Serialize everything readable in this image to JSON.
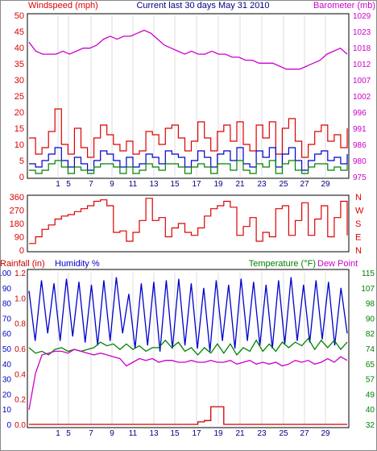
{
  "chart_data": [
    {
      "type": "line",
      "title": "Current last 30 days May 31 2010",
      "ylabel_left": "Windspeed (mph)",
      "ylabel_right": "Barometer (mb)",
      "x_ticks": [
        "1",
        "5",
        "7",
        "9",
        "11",
        "13",
        "15",
        "17",
        "19",
        "21",
        "23",
        "25",
        "27",
        "29"
      ],
      "y_left_ticks": [
        "0",
        "5",
        "10",
        "15",
        "20",
        "25",
        "30",
        "35",
        "40",
        "45",
        "50"
      ],
      "y_left_lim": [
        0,
        50
      ],
      "y_right_ticks": [
        "975",
        "980",
        "986",
        "991",
        "996",
        "1002",
        "1007",
        "1012",
        "1018",
        "1023",
        "1029"
      ],
      "y_right_lim": [
        975,
        1029
      ],
      "series": [
        {
          "name": "Windspeed (mph)",
          "kind": "gust",
          "color": "#dd0000",
          "values": [
            12,
            7,
            9,
            14,
            21,
            10,
            7,
            15,
            9,
            6,
            12,
            16,
            13,
            10,
            8,
            11,
            7,
            8,
            14,
            13,
            10,
            15,
            16,
            12,
            8,
            11,
            17,
            12,
            8,
            14,
            16,
            11,
            17,
            10,
            8,
            16,
            12,
            17,
            7,
            15,
            18,
            11,
            6,
            10,
            14,
            16,
            11,
            13,
            9,
            15
          ]
        },
        {
          "name": "average",
          "kind": "avg",
          "color": "#0000cc",
          "values": [
            4,
            3,
            5,
            7,
            9,
            5,
            3,
            6,
            4,
            2,
            5,
            8,
            7,
            5,
            3,
            6,
            3,
            4,
            7,
            6,
            4,
            8,
            7,
            6,
            3,
            5,
            8,
            6,
            3,
            7,
            8,
            5,
            9,
            4,
            3,
            8,
            6,
            9,
            3,
            7,
            9,
            5,
            2,
            5,
            7,
            8,
            5,
            6,
            4,
            7
          ]
        },
        {
          "name": "low",
          "kind": "low",
          "color": "#008000",
          "values": [
            2,
            1,
            2,
            4,
            5,
            3,
            1,
            3,
            2,
            1,
            3,
            4,
            4,
            3,
            1,
            3,
            1,
            2,
            4,
            3,
            2,
            4,
            4,
            3,
            1,
            3,
            4,
            3,
            1,
            4,
            4,
            2,
            5,
            2,
            1,
            4,
            3,
            5,
            1,
            4,
            5,
            2,
            1,
            3,
            4,
            4,
            2,
            3,
            2,
            4
          ]
        },
        {
          "name": "Barometer (mb)",
          "kind": "baro",
          "color": "#cc00cc",
          "values": [
            1020,
            1017,
            1016,
            1016,
            1016,
            1017,
            1016,
            1017,
            1018,
            1018,
            1019,
            1021,
            1022,
            1021,
            1022,
            1022,
            1023,
            1024,
            1023,
            1021,
            1019,
            1018,
            1017,
            1016,
            1017,
            1016,
            1016,
            1017,
            1016,
            1016,
            1015,
            1015,
            1014,
            1014,
            1013,
            1013,
            1013,
            1012,
            1011,
            1011,
            1011,
            1012,
            1013,
            1014,
            1016,
            1017,
            1018,
            1016
          ]
        }
      ]
    },
    {
      "type": "line",
      "ylabel": "Wind direction",
      "y_ticks": [
        "0",
        "90",
        "180",
        "270",
        "360"
      ],
      "y_lim": [
        0,
        360
      ],
      "y_right_labels": [
        "N",
        "W",
        "S",
        "E",
        "N"
      ],
      "series": [
        {
          "name": "Wind direction",
          "color": "#dd0000",
          "values": [
            45,
            90,
            140,
            170,
            210,
            230,
            240,
            260,
            280,
            300,
            330,
            340,
            300,
            120,
            130,
            60,
            120,
            200,
            350,
            200,
            220,
            90,
            150,
            180,
            120,
            100,
            150,
            230,
            280,
            300,
            330,
            290,
            100,
            160,
            220,
            60,
            120,
            90,
            280,
            300,
            100,
            200,
            320,
            100,
            210,
            300,
            90,
            220,
            330,
            100
          ]
        }
      ]
    },
    {
      "type": "line",
      "ylabel_left": "Rainfall (in)",
      "ylabel_left2": "Humidity %",
      "ylabel_right": "Temperature (°F)",
      "ylabel_right2": "Dew Point",
      "rain_ticks": [
        "0.0",
        "0.2",
        "0.4",
        "0.6",
        "0.8",
        "1.0",
        "1.2"
      ],
      "rain_lim": [
        0,
        1.2
      ],
      "humidity_ticks": [
        "0",
        "10",
        "20",
        "30",
        "40",
        "50",
        "60",
        "70",
        "80",
        "90",
        "100"
      ],
      "humidity_lim": [
        0,
        100
      ],
      "temp_ticks": [
        "32",
        "40",
        "49",
        "57",
        "65",
        "74",
        "82",
        "90",
        "98",
        "107",
        "115"
      ],
      "temp_lim": [
        32,
        115
      ],
      "series": [
        {
          "name": "Humidity %",
          "color": "#0000cc",
          "values": [
            88,
            55,
            95,
            60,
            93,
            55,
            96,
            58,
            94,
            54,
            92,
            52,
            95,
            55,
            97,
            60,
            86,
            50,
            93,
            52,
            94,
            48,
            95,
            50,
            96,
            52,
            93,
            50,
            90,
            48,
            95,
            55,
            92,
            50,
            96,
            55,
            94,
            52,
            92,
            50,
            95,
            53,
            97,
            55,
            92,
            54,
            95,
            56,
            94,
            52,
            90,
            60
          ]
        },
        {
          "name": "Temperature (°F)",
          "color": "#008000",
          "values": [
            74,
            71,
            72,
            70,
            73,
            74,
            72,
            73,
            72,
            73,
            74,
            77,
            75,
            76,
            73,
            76,
            73,
            75,
            72,
            74,
            74,
            78,
            74,
            77,
            72,
            74,
            70,
            74,
            71,
            76,
            71,
            76,
            70,
            74,
            72,
            78,
            72,
            76,
            72,
            77,
            74,
            77,
            75,
            79,
            73,
            78,
            74,
            78,
            73,
            77
          ]
        },
        {
          "name": "Dew Point",
          "color": "#cc00cc",
          "values": [
            40,
            60,
            70,
            71,
            72,
            72,
            71,
            73,
            72,
            71,
            70,
            71,
            70,
            69,
            68,
            64,
            66,
            68,
            67,
            68,
            66,
            67,
            67,
            66,
            66,
            67,
            66,
            66,
            67,
            66,
            66,
            67,
            65,
            66,
            67,
            65,
            66,
            65,
            66,
            64,
            65,
            67,
            66,
            67,
            65,
            66,
            68,
            66,
            69,
            67
          ]
        },
        {
          "name": "Rainfall (in)",
          "color": "#cc0000",
          "values": [
            0,
            0,
            0,
            0,
            0,
            0,
            0,
            0,
            0,
            0,
            0,
            0,
            0,
            0,
            0,
            0,
            0,
            0,
            0,
            0,
            0,
            0,
            0,
            0,
            0,
            0,
            0.02,
            0.03,
            0.14,
            0.14,
            0,
            0,
            0,
            0,
            0,
            0,
            0,
            0,
            0,
            0,
            0,
            0,
            0,
            0,
            0,
            0,
            0,
            0,
            0,
            0
          ]
        }
      ]
    }
  ]
}
